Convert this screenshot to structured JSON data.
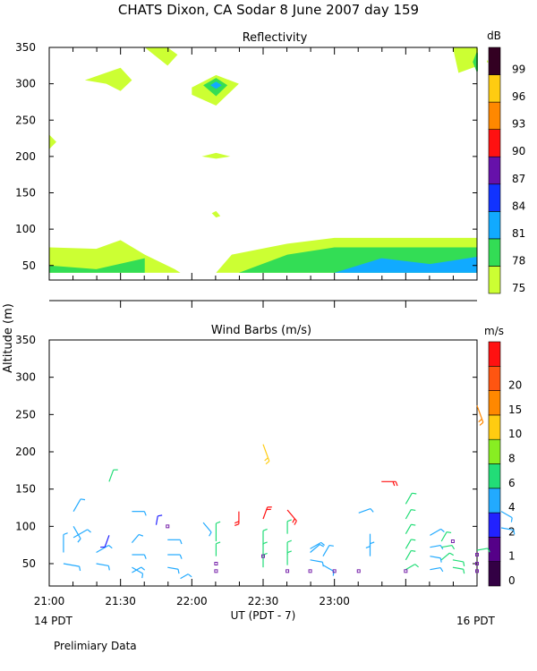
{
  "header": {
    "title": "CHATS Dixon, CA  Sodar    8 June 2007   day 159"
  },
  "footer": {
    "left_time_note": "14 PDT",
    "right_time_note": "16 PDT",
    "preliminary": "Prelimiary Data"
  },
  "chart_data": [
    {
      "type": "heatmap",
      "title": "Reflectivity",
      "ylabel": "Altitude (m)",
      "ylim": [
        30,
        350
      ],
      "yticks": [
        50,
        100,
        150,
        200,
        250,
        300,
        350
      ],
      "colorbar": {
        "unit": "dB",
        "levels": [
          75,
          78,
          81,
          84,
          87,
          90,
          93,
          96,
          99
        ],
        "colors": [
          "#ccff33",
          "#33dd55",
          "#11aaff",
          "#1133ff",
          "#6611aa",
          "#ff1111",
          "#ff8800",
          "#ffcc11",
          "#330022"
        ]
      },
      "regions": [
        {
          "level": 75,
          "points": [
            [
              21.0,
              40
            ],
            [
              21.0,
              75
            ],
            [
              21.33,
              73
            ],
            [
              21.5,
              85
            ],
            [
              21.67,
              65
            ],
            [
              21.88,
              45
            ],
            [
              21.92,
              40
            ]
          ]
        },
        {
          "level": 78,
          "points": [
            [
              21.0,
              40
            ],
            [
              21.0,
              50
            ],
            [
              21.33,
              45
            ],
            [
              21.67,
              60
            ],
            [
              21.67,
              40
            ]
          ]
        },
        {
          "level": 75,
          "points": [
            [
              22.17,
              40
            ],
            [
              22.28,
              65
            ],
            [
              22.67,
              80
            ],
            [
              23.0,
              88
            ],
            [
              24.0,
              88
            ],
            [
              24.0,
              40
            ]
          ]
        },
        {
          "level": 78,
          "points": [
            [
              22.33,
              40
            ],
            [
              22.67,
              65
            ],
            [
              23.0,
              75
            ],
            [
              24.0,
              75
            ],
            [
              24.0,
              40
            ]
          ]
        },
        {
          "level": 81,
          "points": [
            [
              23.0,
              40
            ],
            [
              23.33,
              60
            ],
            [
              23.67,
              52
            ],
            [
              24.0,
              62
            ],
            [
              24.0,
              40
            ]
          ]
        },
        {
          "level": 75,
          "points": [
            [
              21.25,
              305
            ],
            [
              21.5,
              322
            ],
            [
              21.58,
              305
            ],
            [
              21.5,
              290
            ],
            [
              21.4,
              300
            ]
          ]
        },
        {
          "level": 75,
          "points": [
            [
              21.67,
              350
            ],
            [
              21.83,
              325
            ],
            [
              21.9,
              340
            ],
            [
              21.83,
              350
            ]
          ]
        },
        {
          "level": 75,
          "points": [
            [
              22.0,
              295
            ],
            [
              22.17,
              312
            ],
            [
              22.33,
              300
            ],
            [
              22.17,
              270
            ],
            [
              22.0,
              285
            ]
          ]
        },
        {
          "level": 78,
          "points": [
            [
              22.08,
              298
            ],
            [
              22.17,
              308
            ],
            [
              22.25,
              298
            ],
            [
              22.17,
              283
            ]
          ]
        },
        {
          "level": 81,
          "points": [
            [
              22.13,
              298
            ],
            [
              22.17,
              303
            ],
            [
              22.21,
              298
            ],
            [
              22.17,
              293
            ]
          ]
        },
        {
          "level": 75,
          "points": [
            [
              22.07,
              200
            ],
            [
              22.17,
              205
            ],
            [
              22.27,
              200
            ],
            [
              22.17,
              197
            ]
          ]
        },
        {
          "level": 75,
          "points": [
            [
              22.14,
              122
            ],
            [
              22.17,
              125
            ],
            [
              22.2,
              118
            ],
            [
              22.17,
              116
            ]
          ]
        },
        {
          "level": 75,
          "points": [
            [
              21.0,
              230
            ],
            [
              21.05,
              220
            ],
            [
              21.0,
              210
            ]
          ]
        },
        {
          "level": 75,
          "points": [
            [
              23.83,
              350
            ],
            [
              23.87,
              315
            ],
            [
              24.08,
              330
            ],
            [
              24.0,
              350
            ]
          ]
        },
        {
          "level": 78,
          "points": [
            [
              24.0,
              345
            ],
            [
              24.03,
              330
            ],
            [
              24.0,
              315
            ],
            [
              23.97,
              330
            ]
          ]
        }
      ]
    },
    {
      "type": "scatter",
      "title": "Wind Barbs (m/s)",
      "ylabel": "Altitude (m)",
      "ylim": [
        20,
        350
      ],
      "yticks": [
        50,
        100,
        150,
        200,
        250,
        300,
        350
      ],
      "xlabel": "UT  (PDT - 7)",
      "xticks": [
        "21:00",
        "21:30",
        "22:00",
        "22:30",
        "23:00"
      ],
      "colorbar": {
        "unit": "m/s",
        "levels": [
          0,
          1,
          2,
          4,
          6,
          8,
          10,
          15,
          20
        ],
        "colors": [
          "#330044",
          "#550088",
          "#2222ff",
          "#22aaff",
          "#22dd77",
          "#88ee22",
          "#ffcc11",
          "#ff8800",
          "#ff5511",
          "#ff1111"
        ]
      },
      "barbs": [
        [
          21.1,
          65,
          0,
          20,
          4
        ],
        [
          21.1,
          50,
          100,
          18,
          4
        ],
        [
          21.17,
          120,
          30,
          16,
          4
        ],
        [
          21.17,
          100,
          150,
          16,
          4
        ],
        [
          21.17,
          85,
          60,
          18,
          4
        ],
        [
          21.33,
          65,
          60,
          16,
          4
        ],
        [
          21.33,
          50,
          100,
          14,
          4
        ],
        [
          21.42,
          160,
          20,
          14,
          6
        ],
        [
          21.42,
          88,
          200,
          14,
          2
        ],
        [
          21.58,
          120,
          90,
          14,
          4
        ],
        [
          21.58,
          78,
          40,
          12,
          4
        ],
        [
          21.58,
          62,
          90,
          14,
          4
        ],
        [
          21.58,
          45,
          120,
          14,
          4
        ],
        [
          21.58,
          38,
          60,
          12,
          4
        ],
        [
          21.75,
          102,
          10,
          10,
          2
        ],
        [
          21.83,
          82,
          90,
          14,
          4
        ],
        [
          21.83,
          62,
          90,
          14,
          4
        ],
        [
          21.83,
          45,
          100,
          12,
          4
        ],
        [
          21.92,
          30,
          60,
          10,
          4
        ],
        [
          22.08,
          105,
          140,
          14,
          4
        ],
        [
          22.17,
          80,
          0,
          20,
          6
        ],
        [
          22.17,
          60,
          0,
          14,
          6
        ],
        [
          22.33,
          120,
          180,
          14,
          20
        ],
        [
          22.5,
          75,
          0,
          16,
          6
        ],
        [
          22.5,
          60,
          0,
          14,
          6
        ],
        [
          22.5,
          45,
          0,
          14,
          6
        ],
        [
          22.5,
          210,
          160,
          20,
          10
        ],
        [
          22.5,
          110,
          20,
          14,
          20
        ],
        [
          22.67,
          122,
          140,
          16,
          20
        ],
        [
          22.67,
          90,
          0,
          14,
          6
        ],
        [
          22.67,
          62,
          0,
          14,
          6
        ],
        [
          22.67,
          48,
          0,
          14,
          6
        ],
        [
          22.83,
          70,
          60,
          14,
          4
        ],
        [
          22.83,
          55,
          100,
          14,
          4
        ],
        [
          22.83,
          65,
          50,
          14,
          4
        ],
        [
          22.92,
          60,
          30,
          14,
          4
        ],
        [
          22.92,
          48,
          120,
          14,
          4
        ],
        [
          23.17,
          118,
          70,
          14,
          4
        ],
        [
          23.25,
          90,
          180,
          14,
          4
        ],
        [
          23.25,
          60,
          0,
          14,
          4
        ],
        [
          23.33,
          160,
          90,
          16,
          20
        ],
        [
          23.5,
          130,
          30,
          14,
          6
        ],
        [
          23.5,
          110,
          30,
          12,
          6
        ],
        [
          23.5,
          90,
          30,
          12,
          6
        ],
        [
          23.5,
          70,
          30,
          12,
          6
        ],
        [
          23.5,
          55,
          30,
          12,
          6
        ],
        [
          23.5,
          42,
          60,
          12,
          6
        ],
        [
          23.67,
          88,
          60,
          14,
          4
        ],
        [
          23.67,
          72,
          80,
          12,
          4
        ],
        [
          23.67,
          60,
          100,
          12,
          4
        ],
        [
          23.67,
          42,
          80,
          12,
          4
        ],
        [
          23.75,
          80,
          30,
          12,
          6
        ],
        [
          23.75,
          72,
          80,
          12,
          6
        ],
        [
          23.75,
          55,
          50,
          12,
          6
        ],
        [
          23.83,
          55,
          100,
          12,
          6
        ],
        [
          23.83,
          45,
          100,
          12,
          6
        ],
        [
          24.0,
          262,
          160,
          20,
          15
        ],
        [
          24.0,
          68,
          80,
          12,
          6
        ],
        [
          24.17,
          120,
          120,
          14,
          4
        ],
        [
          24.17,
          98,
          100,
          14,
          4
        ]
      ],
      "calm_points": [
        [
          21.83,
          100
        ],
        [
          22.17,
          50
        ],
        [
          22.17,
          40
        ],
        [
          22.5,
          60
        ],
        [
          22.67,
          40
        ],
        [
          22.83,
          40
        ],
        [
          23.0,
          40
        ],
        [
          23.17,
          40
        ],
        [
          23.5,
          40
        ],
        [
          23.83,
          80
        ],
        [
          24.0,
          62
        ],
        [
          24.0,
          50
        ],
        [
          24.0,
          40
        ]
      ]
    }
  ]
}
